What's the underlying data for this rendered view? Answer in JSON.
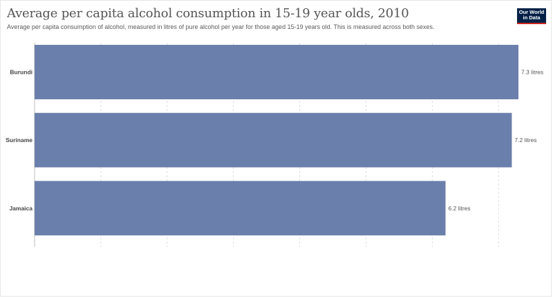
{
  "header": {
    "title": "Average per capita alcohol consumption in 15-19 year olds, 2010",
    "subtitle": "Average per capita consumption of alcohol, measured in litres of pure alcohol per year for those aged 15-19 years old. This is measured across both sexes."
  },
  "logo": {
    "line1": "Our World",
    "line2": "in Data",
    "bg_color": "#002147",
    "accent_color": "#ce261e"
  },
  "chart_data": {
    "type": "bar",
    "orientation": "horizontal",
    "categories": [
      "Burundi",
      "Suriname",
      "Jamaica"
    ],
    "values": [
      7.3,
      7.2,
      6.2
    ],
    "value_labels": [
      "7.3 litres",
      "7.2 litres",
      "6.2 litres"
    ],
    "unit": "litres",
    "xlim": [
      0,
      7.5
    ],
    "grid": "vertical dashed",
    "bar_color": "#6a7fab"
  }
}
